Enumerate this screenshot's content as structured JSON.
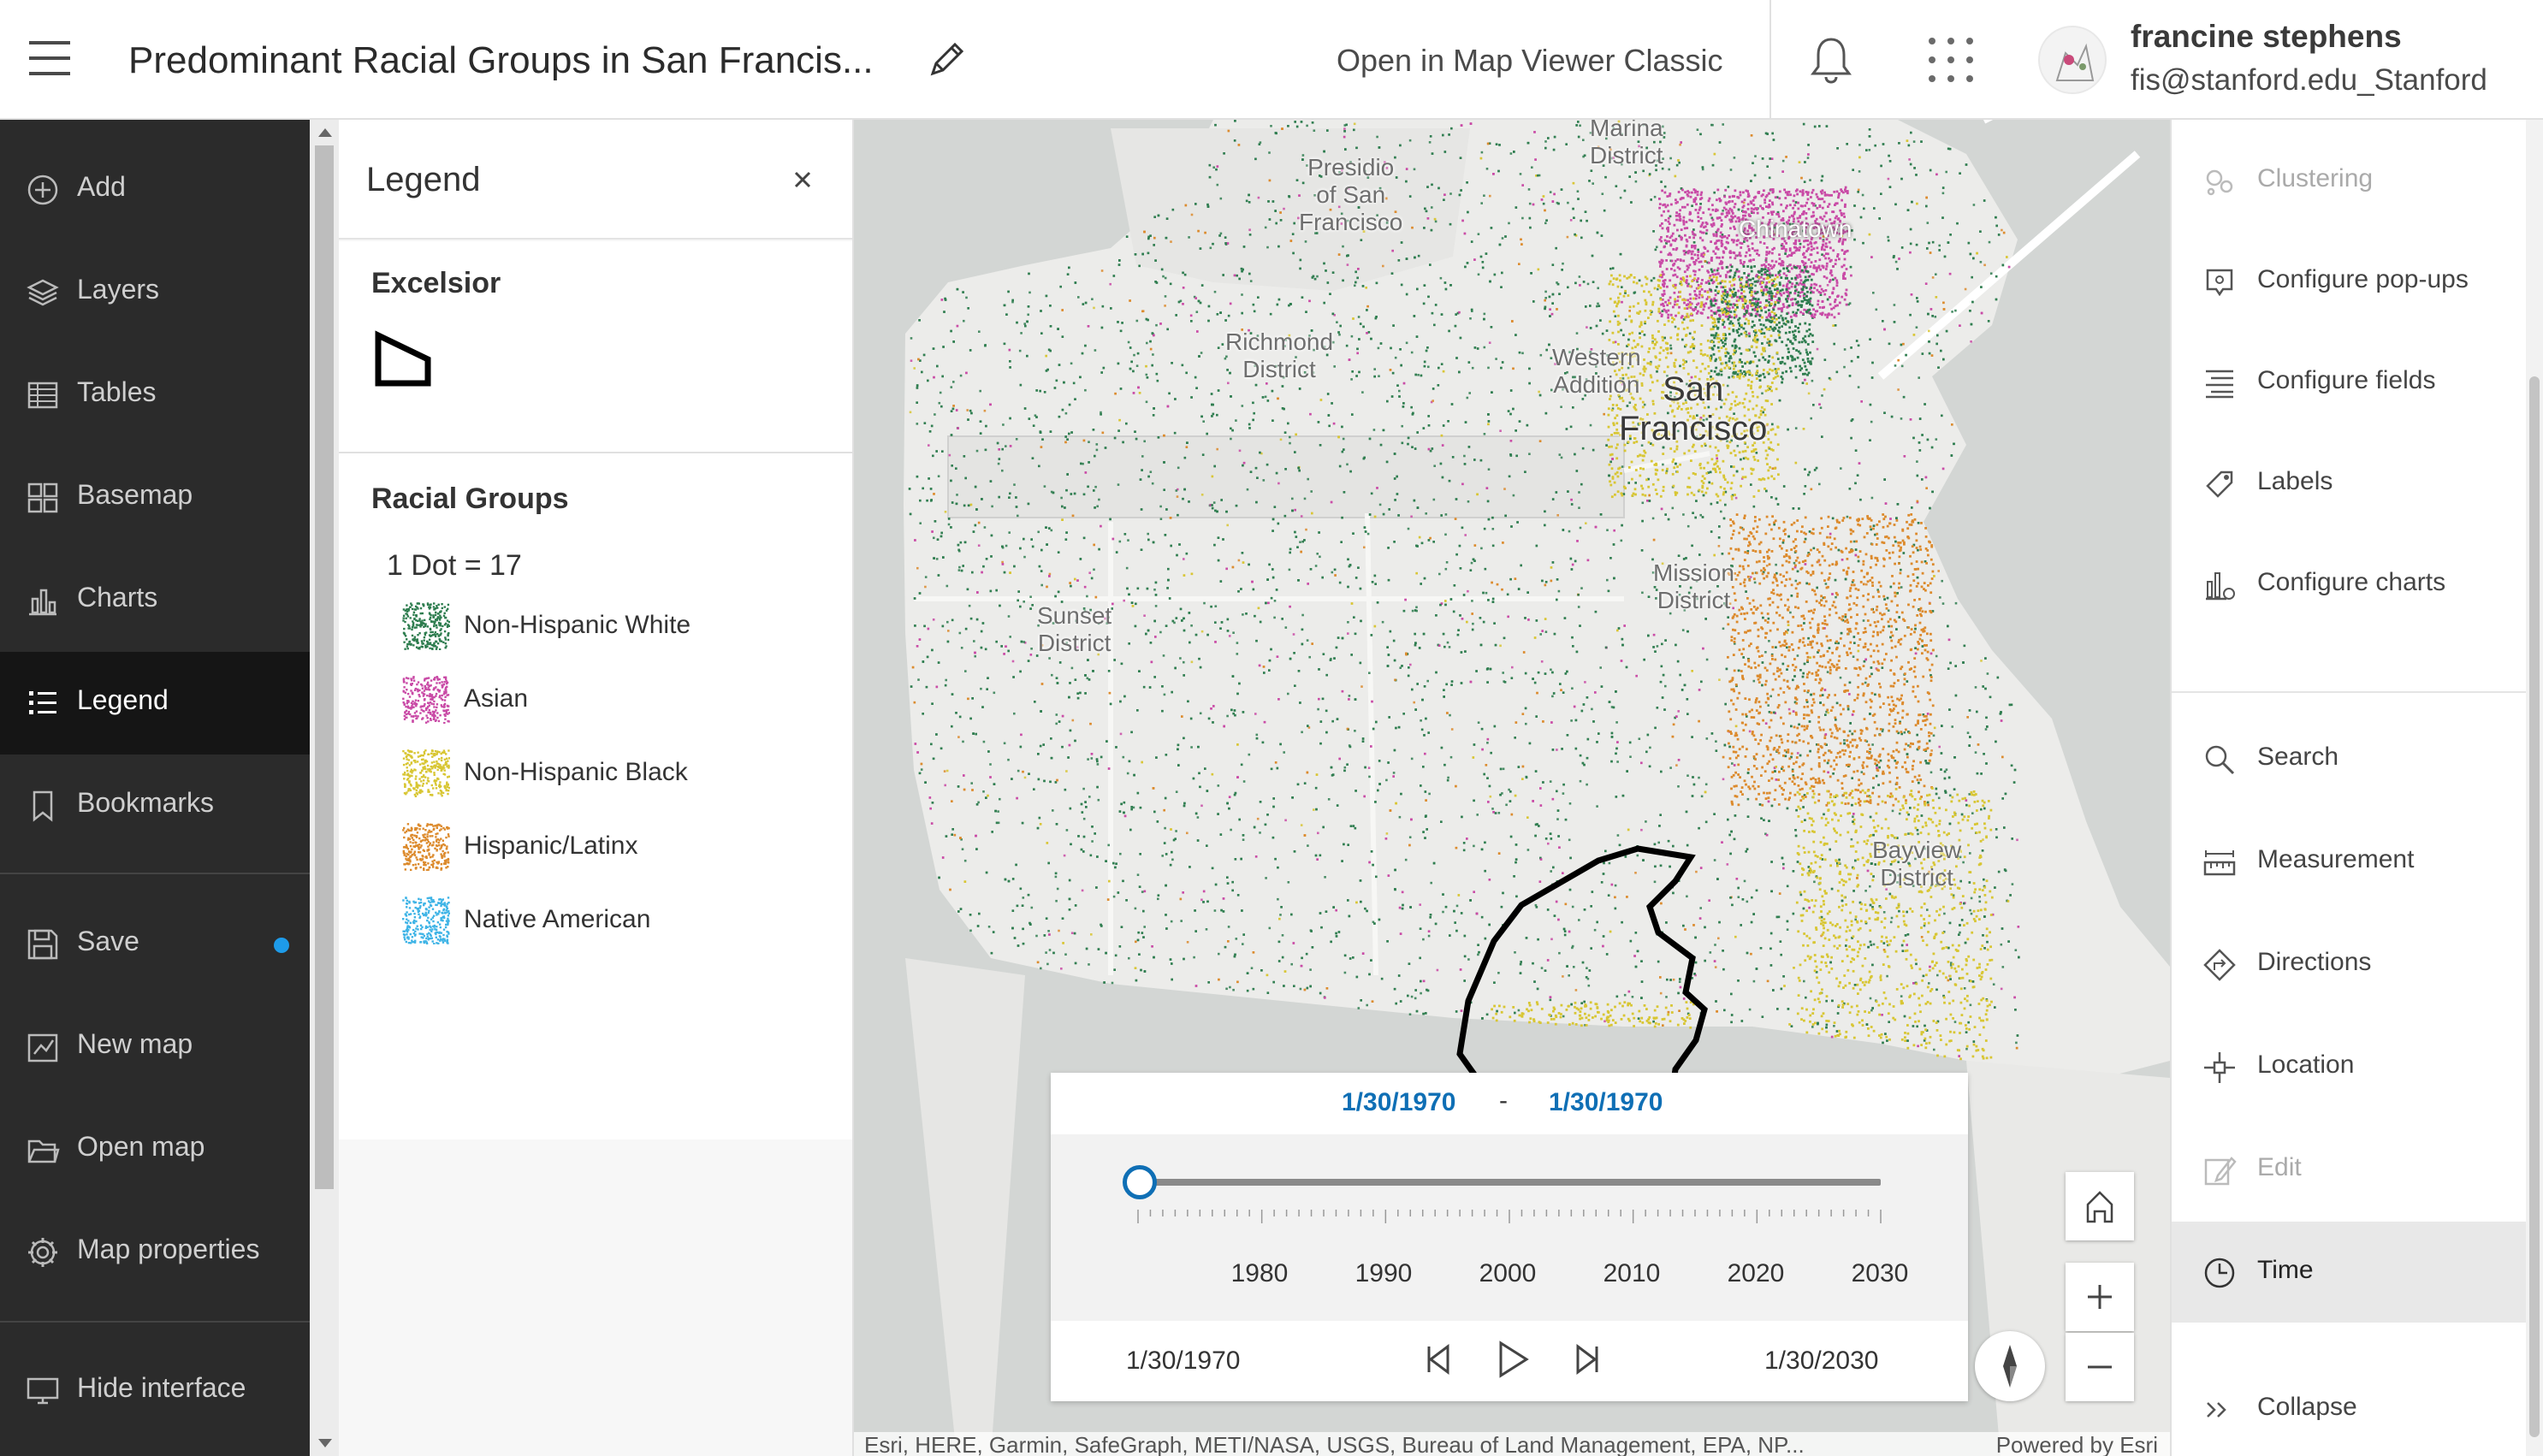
{
  "header": {
    "map_title": "Predominant Racial Groups in San Francis...",
    "open_classic": "Open in Map Viewer Classic",
    "user_name": "francine stephens",
    "user_email": "fis@stanford.edu_Stanford"
  },
  "nav": {
    "items": [
      {
        "label": "Add",
        "icon": "add-icon"
      },
      {
        "label": "Layers",
        "icon": "layers-icon"
      },
      {
        "label": "Tables",
        "icon": "table-icon"
      },
      {
        "label": "Basemap",
        "icon": "basemap-icon"
      },
      {
        "label": "Charts",
        "icon": "chart-icon"
      },
      {
        "label": "Legend",
        "icon": "legend-icon",
        "active": true
      },
      {
        "label": "Bookmarks",
        "icon": "bookmark-icon"
      }
    ],
    "actions": [
      {
        "label": "Save",
        "icon": "save-icon",
        "unsaved_indicator": true
      },
      {
        "label": "New map",
        "icon": "new-map-icon"
      },
      {
        "label": "Open map",
        "icon": "folder-icon"
      },
      {
        "label": "Map properties",
        "icon": "gear-icon"
      }
    ],
    "hide_interface": "Hide interface",
    "accent_color": "#1e9be9"
  },
  "legend": {
    "title": "Legend",
    "section1_title": "Excelsior",
    "section2_title": "Racial Groups",
    "dot_note": "1 Dot = 17",
    "items": [
      {
        "label": "Non-Hispanic White",
        "color": "#2e7d4f"
      },
      {
        "label": "Asian",
        "color": "#c94aa6"
      },
      {
        "label": "Non-Hispanic Black",
        "color": "#d8c633"
      },
      {
        "label": "Hispanic/Latinx",
        "color": "#dc8a2c"
      },
      {
        "label": "Native American",
        "color": "#3fb4e6"
      }
    ]
  },
  "map": {
    "labels": {
      "marina": "Marina\nDistrict",
      "presidio": "Presidio\nof San\nFrancisco",
      "chinatown": "Chinatown",
      "richmond": "Richmond\nDistrict",
      "western_addition": "Western\nAddition",
      "city": "San\nFrancisco",
      "mission": "Mission\nDistrict",
      "sunset": "Sunset\nDistrict",
      "bayview": "Bayview\nDistrict"
    },
    "attribution": "Esri, HERE, Garmin, SafeGraph, METI/NASA, USGS, Bureau of Land Management, EPA, NP...",
    "powered_by": "Powered by Esri"
  },
  "time_slider": {
    "range_start": "1/30/1970",
    "range_end": "1/30/1970",
    "range_separator": "-",
    "years": [
      "1980",
      "1990",
      "2000",
      "2010",
      "2020",
      "2030"
    ],
    "start_label": "1/30/1970",
    "end_label": "1/30/2030",
    "position": 0
  },
  "right_panel": {
    "items": [
      {
        "label": "Clustering",
        "icon": "clustering-icon",
        "disabled": true
      },
      {
        "label": "Configure pop-ups",
        "icon": "popup-icon"
      },
      {
        "label": "Configure fields",
        "icon": "fields-icon"
      },
      {
        "label": "Labels",
        "icon": "label-icon"
      },
      {
        "label": "Configure charts",
        "icon": "chart-config-icon"
      }
    ],
    "tools": [
      {
        "label": "Search",
        "icon": "search-icon"
      },
      {
        "label": "Measurement",
        "icon": "measure-icon"
      },
      {
        "label": "Directions",
        "icon": "directions-icon"
      },
      {
        "label": "Location",
        "icon": "location-icon"
      },
      {
        "label": "Edit",
        "icon": "edit-icon",
        "disabled": true
      },
      {
        "label": "Time",
        "icon": "clock-icon",
        "active": true
      }
    ],
    "collapse": "Collapse"
  }
}
